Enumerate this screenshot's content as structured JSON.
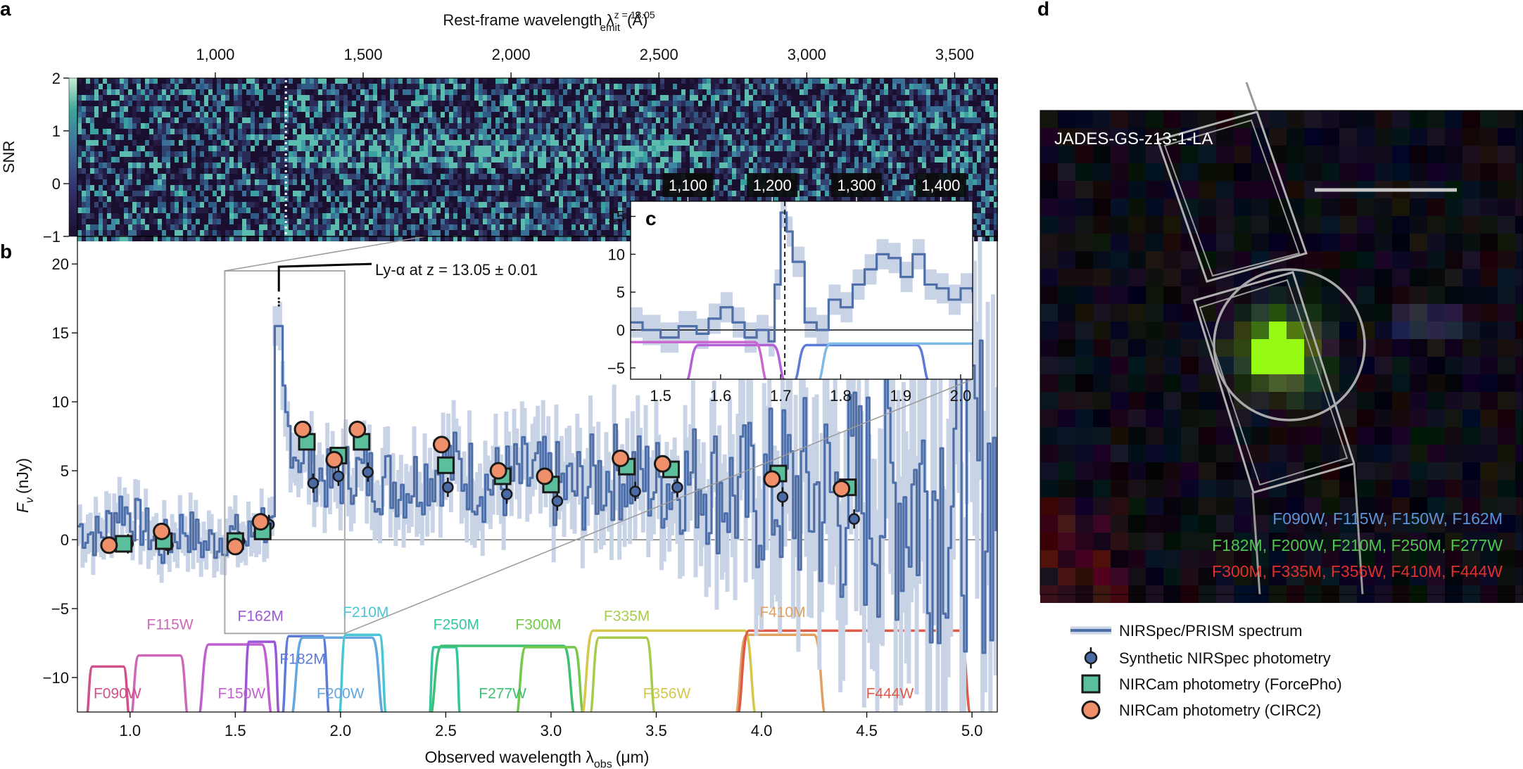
{
  "panel_labels": {
    "a": "a",
    "b": "b",
    "c": "c",
    "d": "d"
  },
  "chart_data": [
    {
      "id": "a",
      "type": "heatmap",
      "title": "2D SNR spectrum",
      "top_axis_label": "Rest-frame wavelength λ",
      "top_axis_sub": "emit",
      "top_axis_sup": "z = 13.05",
      "top_axis_unit": "(Å)",
      "top_ticks": [
        1000,
        1500,
        2000,
        2500,
        3000,
        3500
      ],
      "top_tick_labels": [
        "1,000",
        "1,500",
        "2,000",
        "2,500",
        "3,000",
        "3,500"
      ],
      "ylabel": "SNR",
      "colorbar_ticks": [
        -1,
        0,
        1,
        2
      ],
      "colorbar_tick_labels": [
        "−1",
        "0",
        "1",
        "2"
      ],
      "ylim": [
        -1,
        2
      ]
    },
    {
      "id": "b",
      "type": "line",
      "xlabel": "Observed wavelength λ",
      "xlabel_sub": "obs",
      "xlabel_unit": "(μm)",
      "ylabel": "F",
      "ylabel_sub": "ν",
      "ylabel_unit": "(nJy)",
      "xlim": [
        0.75,
        5.12
      ],
      "ylim": [
        -12.5,
        22
      ],
      "xticks": [
        1.0,
        1.5,
        2.0,
        2.5,
        3.0,
        3.5,
        4.0,
        4.5,
        5.0
      ],
      "xtick_labels": [
        "1.0",
        "1.5",
        "2.0",
        "2.5",
        "3.0",
        "3.5",
        "4.0",
        "4.5",
        "5.0"
      ],
      "yticks": [
        -10,
        -5,
        0,
        5,
        10,
        15,
        20
      ],
      "ytick_labels": [
        "−10",
        "−5",
        "0",
        "5",
        "10",
        "15",
        "20"
      ],
      "annotation": "Ly-α at z = 13.05 ± 0.01",
      "lya_wavelength": 1.707,
      "spectrum_knots": [
        [
          0.75,
          1.0
        ],
        [
          0.85,
          0.2
        ],
        [
          0.95,
          2.5
        ],
        [
          1.05,
          1.0
        ],
        [
          1.15,
          -0.5
        ],
        [
          1.25,
          1.0
        ],
        [
          1.35,
          -0.5
        ],
        [
          1.45,
          0.5
        ],
        [
          1.55,
          -0.2
        ],
        [
          1.62,
          1.5
        ],
        [
          1.68,
          0.3
        ],
        [
          1.7,
          15.5
        ],
        [
          1.73,
          9.0
        ],
        [
          1.78,
          6.5
        ],
        [
          1.85,
          5.5
        ],
        [
          1.95,
          4.0
        ],
        [
          2.05,
          5.0
        ],
        [
          2.15,
          4.5
        ],
        [
          2.3,
          4.0
        ],
        [
          2.5,
          5.5
        ],
        [
          2.7,
          4.0
        ],
        [
          2.9,
          4.5
        ],
        [
          3.1,
          3.5
        ],
        [
          3.3,
          5.0
        ],
        [
          3.5,
          4.0
        ],
        [
          3.7,
          4.5
        ],
        [
          3.9,
          3.0
        ],
        [
          4.1,
          3.5
        ],
        [
          4.3,
          3.0
        ],
        [
          4.5,
          3.0
        ],
        [
          4.7,
          3.5
        ],
        [
          4.9,
          4.0
        ],
        [
          5.12,
          4.0
        ]
      ],
      "synthetic_nirspec": [
        {
          "x": 0.99,
          "y": -0.3
        },
        {
          "x": 1.18,
          "y": -0.4
        },
        {
          "x": 1.52,
          "y": -0.1
        },
        {
          "x": 1.66,
          "y": 1.1
        },
        {
          "x": 1.87,
          "y": 4.1
        },
        {
          "x": 1.99,
          "y": 4.6
        },
        {
          "x": 2.13,
          "y": 4.9
        },
        {
          "x": 2.51,
          "y": 3.8
        },
        {
          "x": 2.79,
          "y": 3.3
        },
        {
          "x": 3.03,
          "y": 2.8
        },
        {
          "x": 3.4,
          "y": 3.5
        },
        {
          "x": 3.6,
          "y": 3.8
        },
        {
          "x": 4.1,
          "y": 3.1
        },
        {
          "x": 4.44,
          "y": 1.5
        }
      ],
      "nircam_forcepho": [
        {
          "x": 0.97,
          "y": -0.3
        },
        {
          "x": 1.16,
          "y": -0.1
        },
        {
          "x": 1.5,
          "y": -0.1
        },
        {
          "x": 1.63,
          "y": 0.6
        },
        {
          "x": 1.84,
          "y": 7.1
        },
        {
          "x": 1.99,
          "y": 6.1
        },
        {
          "x": 2.1,
          "y": 7.1
        },
        {
          "x": 2.5,
          "y": 5.4
        },
        {
          "x": 2.77,
          "y": 4.6
        },
        {
          "x": 3.0,
          "y": 4.0
        },
        {
          "x": 3.36,
          "y": 5.3
        },
        {
          "x": 3.57,
          "y": 5.1
        },
        {
          "x": 4.08,
          "y": 4.8
        },
        {
          "x": 4.41,
          "y": 3.8
        }
      ],
      "nircam_circ2": [
        {
          "x": 0.9,
          "y": -0.4
        },
        {
          "x": 1.15,
          "y": 0.6
        },
        {
          "x": 1.5,
          "y": -0.5
        },
        {
          "x": 1.62,
          "y": 1.3
        },
        {
          "x": 1.82,
          "y": 8.0
        },
        {
          "x": 1.97,
          "y": 5.8
        },
        {
          "x": 2.08,
          "y": 8.0
        },
        {
          "x": 2.48,
          "y": 6.9
        },
        {
          "x": 2.75,
          "y": 5.0
        },
        {
          "x": 2.97,
          "y": 4.6
        },
        {
          "x": 3.33,
          "y": 5.9
        },
        {
          "x": 3.53,
          "y": 5.5
        },
        {
          "x": 4.05,
          "y": 4.4
        },
        {
          "x": 4.38,
          "y": 3.7
        }
      ],
      "filters": [
        {
          "name": "F090W",
          "lo": 0.79,
          "hi": 1.0,
          "peak": -9.2,
          "color": "#d0508a",
          "label_x": 0.94,
          "label_y": -11.5
        },
        {
          "name": "F115W",
          "lo": 1.0,
          "hi": 1.28,
          "peak": -8.4,
          "color": "#d066b8",
          "label_x": 1.19,
          "label_y": -6.5
        },
        {
          "name": "F150W",
          "lo": 1.32,
          "hi": 1.68,
          "peak": -7.6,
          "color": "#c05fd0",
          "label_x": 1.53,
          "label_y": -11.5
        },
        {
          "name": "F162M",
          "lo": 1.54,
          "hi": 1.71,
          "peak": -7.4,
          "color": "#9a58d6",
          "label_x": 1.62,
          "label_y": -5.9
        },
        {
          "name": "F182M",
          "lo": 1.72,
          "hi": 1.95,
          "peak": -7.0,
          "color": "#5c7ad8",
          "label_x": 1.82,
          "label_y": -9.0
        },
        {
          "name": "F200W",
          "lo": 1.76,
          "hi": 2.21,
          "peak": -7.1,
          "color": "#64a6e0",
          "label_x": 2.0,
          "label_y": -11.5
        },
        {
          "name": "F210M",
          "lo": 1.99,
          "hi": 2.22,
          "peak": -6.9,
          "color": "#49c5d4",
          "label_x": 2.12,
          "label_y": -5.6
        },
        {
          "name": "F250M",
          "lo": 2.42,
          "hi": 2.57,
          "peak": -7.8,
          "color": "#33c7a0",
          "label_x": 2.55,
          "label_y": -6.5
        },
        {
          "name": "F277W",
          "lo": 2.42,
          "hi": 3.12,
          "peak": -7.7,
          "color": "#3fbf74",
          "label_x": 2.77,
          "label_y": -11.5
        },
        {
          "name": "F300M",
          "lo": 2.83,
          "hi": 3.16,
          "peak": -7.8,
          "color": "#74c84a",
          "label_x": 2.94,
          "label_y": -6.5
        },
        {
          "name": "F335M",
          "lo": 3.18,
          "hi": 3.5,
          "peak": -7.1,
          "color": "#a7cc4c",
          "label_x": 3.36,
          "label_y": -5.9
        },
        {
          "name": "F356W",
          "lo": 3.14,
          "hi": 3.98,
          "peak": -6.6,
          "color": "#d6c74c",
          "label_x": 3.55,
          "label_y": -11.5
        },
        {
          "name": "F410M",
          "lo": 3.87,
          "hi": 4.31,
          "peak": -6.9,
          "color": "#e0a060",
          "label_x": 4.1,
          "label_y": -5.6
        },
        {
          "name": "F444W",
          "lo": 3.88,
          "hi": 5.0,
          "peak": -6.6,
          "color": "#e05a4a",
          "label_x": 4.61,
          "label_y": -11.5
        }
      ]
    },
    {
      "id": "c",
      "type": "line",
      "title": "Inset zoom on Ly-α break",
      "xlim": [
        1.45,
        2.02
      ],
      "ylim": [
        -6.5,
        17
      ],
      "xticks": [
        1.5,
        1.6,
        1.7,
        1.8,
        1.9,
        2.0
      ],
      "xtick_labels": [
        "1.5",
        "1.6",
        "1.7",
        "1.8",
        "1.9",
        "2.0"
      ],
      "yticks": [
        -5,
        0,
        5,
        10,
        15
      ],
      "ytick_labels": [
        "−5",
        "0",
        "5",
        "10",
        "15"
      ],
      "top_ticks": [
        1100,
        1200,
        1300,
        1400
      ],
      "top_tick_labels": [
        "1,100",
        "1,200",
        "1,300",
        "1,400"
      ],
      "line_x": 1.707,
      "spectrum": [
        [
          1.45,
          1.0
        ],
        [
          1.47,
          0.0
        ],
        [
          1.5,
          -1.0
        ],
        [
          1.53,
          0.5
        ],
        [
          1.56,
          -0.5
        ],
        [
          1.58,
          1.5
        ],
        [
          1.6,
          3.0
        ],
        [
          1.62,
          1.0
        ],
        [
          1.64,
          -1.0
        ],
        [
          1.66,
          0.0
        ],
        [
          1.68,
          -1.5
        ],
        [
          1.69,
          6.0
        ],
        [
          1.7,
          15.5
        ],
        [
          1.71,
          13.0
        ],
        [
          1.72,
          9.0
        ],
        [
          1.74,
          1.0
        ],
        [
          1.76,
          0.0
        ],
        [
          1.78,
          4.0
        ],
        [
          1.8,
          3.0
        ],
        [
          1.82,
          6.0
        ],
        [
          1.84,
          8.0
        ],
        [
          1.86,
          10.0
        ],
        [
          1.88,
          9.5
        ],
        [
          1.9,
          7.0
        ],
        [
          1.92,
          10.0
        ],
        [
          1.94,
          6.0
        ],
        [
          1.96,
          5.5
        ],
        [
          1.98,
          4.0
        ],
        [
          2.0,
          5.5
        ],
        [
          2.02,
          5.0
        ]
      ],
      "filter_curves": [
        {
          "name": "F162M",
          "lo": 1.54,
          "hi": 1.71,
          "peak": -2.0,
          "color": "#b55fd8"
        },
        {
          "name": "F150W",
          "lo": 1.32,
          "hi": 1.68,
          "peak": -1.6,
          "color": "#c968cf"
        },
        {
          "name": "F182M",
          "lo": 1.72,
          "hi": 1.95,
          "peak": -2.0,
          "color": "#5c7ad8"
        },
        {
          "name": "F200W",
          "lo": 1.76,
          "hi": 2.21,
          "peak": -1.8,
          "color": "#7dbbe6"
        }
      ]
    }
  ],
  "image_panel": {
    "target_name": "JADES-GS-z13-1-LA",
    "filter_rows": [
      {
        "text": "F090W, F115W, F150W, F162M",
        "color": "#5d93d6"
      },
      {
        "text": "F182M, F200W, F210M, F250M, F277W",
        "color": "#4ec64e"
      },
      {
        "text": "F300M, F335M, F356W, F410M, F444W",
        "color": "#e0302a"
      }
    ]
  },
  "legend": {
    "items": [
      {
        "label": "NIRSpec/PRISM spectrum",
        "kind": "line"
      },
      {
        "label": "Synthetic NIRSpec photometry",
        "kind": "errorpoint"
      },
      {
        "label": "NIRCam photometry (ForcePho)",
        "kind": "square"
      },
      {
        "label": "NIRCam photometry (CIRC2)",
        "kind": "circle"
      }
    ]
  },
  "colors": {
    "spectrum": "#4f6fa8",
    "spectrum_err": "#c9d3e6",
    "square": "#5bbf9c",
    "circle": "#f0906a",
    "marker_edge": "#2b2b2b",
    "synth": "#4a6aa6"
  }
}
